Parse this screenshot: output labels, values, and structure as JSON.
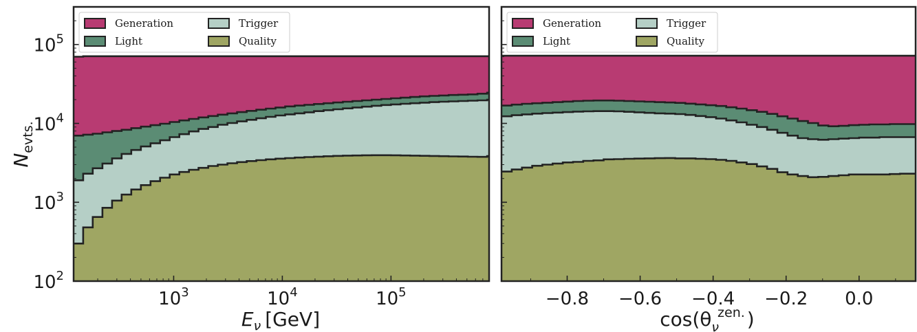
{
  "colors": {
    "generation": "#b83b72",
    "light": "#5b8c74",
    "trigger": "#b5cfc6",
    "quality": "#9fa663",
    "outline": "#222222"
  },
  "legend_labels": [
    "Generation",
    "Light",
    "Trigger",
    "Quality"
  ],
  "ylabel_main": "N",
  "ylabel_sub": "evts.",
  "chart_data": [
    {
      "type": "area",
      "stacked_overlay": true,
      "x_scale": "log",
      "y_scale": "log",
      "xlim": [
        120,
        800000
      ],
      "ylim": [
        100,
        300000
      ],
      "xlabel_main": "E",
      "xlabel_sub": "ν",
      "xlabel_unit": "[GeV]",
      "ylabel": "N_evts.",
      "legend_position": "top-left",
      "x_ticks": [
        {
          "value": 1000,
          "base": "10",
          "exp": "3"
        },
        {
          "value": 10000,
          "base": "10",
          "exp": "4"
        },
        {
          "value": 100000,
          "base": "10",
          "exp": "5"
        }
      ],
      "y_ticks": [
        {
          "value": 100,
          "base": "10",
          "exp": "2"
        },
        {
          "value": 1000,
          "base": "10",
          "exp": "3"
        },
        {
          "value": 10000,
          "base": "10",
          "exp": "4"
        },
        {
          "value": 100000,
          "base": "10",
          "exp": "5"
        }
      ],
      "x": [
        120,
        147,
        180,
        221,
        271,
        332,
        407,
        499,
        612,
        750,
        920,
        1128,
        1383,
        1695,
        2079,
        2549,
        3125,
        3831,
        4698,
        5760,
        7061,
        8658,
        10615,
        13015,
        15957,
        19564,
        23988,
        29410,
        36059,
        44211,
        54205,
        66459,
        81483,
        99904,
        122489,
        150181,
        184131,
        225757,
        276793,
        339367,
        416088,
        510154,
        625483,
        766885
      ],
      "series": [
        {
          "name": "Generation",
          "values": [
            70000,
            71000,
            71000,
            71000,
            71000,
            71000,
            71000,
            71000,
            71000,
            71000,
            71000,
            71000,
            71000,
            71000,
            71000,
            71000,
            71000,
            71000,
            71000,
            71000,
            71000,
            71000,
            71000,
            71000,
            71000,
            71000,
            71000,
            71000,
            71000,
            71000,
            71000,
            71000,
            71000,
            71000,
            71000,
            71000,
            71000,
            71000,
            71000,
            71000,
            71000,
            71000,
            71000,
            71000
          ]
        },
        {
          "name": "Light",
          "values": [
            7000,
            7200,
            7400,
            7700,
            8000,
            8300,
            8700,
            9100,
            9500,
            9900,
            10400,
            10900,
            11400,
            11900,
            12400,
            12900,
            13400,
            13900,
            14400,
            14900,
            15400,
            15900,
            16400,
            16800,
            17200,
            17600,
            18000,
            18400,
            18800,
            19200,
            19600,
            20000,
            20400,
            20800,
            21200,
            21600,
            22000,
            22300,
            22600,
            22900,
            23100,
            23300,
            23800,
            24500
          ]
        },
        {
          "name": "Trigger",
          "values": [
            1900,
            2300,
            2700,
            3100,
            3600,
            4100,
            4600,
            5100,
            5600,
            6100,
            6700,
            7300,
            7900,
            8500,
            9000,
            9600,
            10100,
            10600,
            11100,
            11600,
            12100,
            12600,
            13000,
            13400,
            13800,
            14300,
            14700,
            15100,
            15500,
            15900,
            16300,
            16700,
            17100,
            17400,
            17700,
            18000,
            18300,
            18600,
            18800,
            19000,
            19200,
            19400,
            19600,
            20000
          ]
        },
        {
          "name": "Quality",
          "values": [
            300,
            480,
            650,
            850,
            1050,
            1250,
            1450,
            1650,
            1850,
            2050,
            2250,
            2420,
            2580,
            2730,
            2880,
            3000,
            3120,
            3230,
            3330,
            3420,
            3500,
            3570,
            3630,
            3690,
            3740,
            3790,
            3830,
            3870,
            3900,
            3920,
            3940,
            3950,
            3950,
            3940,
            3920,
            3900,
            3880,
            3860,
            3840,
            3820,
            3800,
            3780,
            3760,
            3850
          ]
        }
      ]
    },
    {
      "type": "area",
      "stacked_overlay": true,
      "x_scale": "linear",
      "y_scale": "log",
      "xlim": [
        -0.98,
        0.155
      ],
      "ylim": [
        100,
        300000
      ],
      "xlabel": "cos(θ_ν^zen.)",
      "xlabel_main": "cos(θ",
      "xlabel_sub": "ν",
      "xlabel_sup": "zen.",
      "xlabel_close": ")",
      "legend_position": "top-left",
      "x_ticks": [
        {
          "value": -0.8,
          "label": "−0.8"
        },
        {
          "value": -0.6,
          "label": "−0.6"
        },
        {
          "value": -0.4,
          "label": "−0.4"
        },
        {
          "value": -0.2,
          "label": "−0.2"
        },
        {
          "value": 0.0,
          "label": "0.0"
        }
      ],
      "x": [
        -0.98,
        -0.952,
        -0.924,
        -0.896,
        -0.868,
        -0.84,
        -0.812,
        -0.784,
        -0.756,
        -0.728,
        -0.7,
        -0.672,
        -0.644,
        -0.616,
        -0.588,
        -0.56,
        -0.532,
        -0.504,
        -0.476,
        -0.448,
        -0.42,
        -0.392,
        -0.364,
        -0.336,
        -0.308,
        -0.28,
        -0.252,
        -0.224,
        -0.196,
        -0.168,
        -0.14,
        -0.112,
        -0.084,
        -0.056,
        -0.028,
        0.0,
        0.028,
        0.056,
        0.084,
        0.112,
        0.14
      ],
      "series": [
        {
          "name": "Generation",
          "values": [
            72000,
            72000,
            72000,
            72000,
            72000,
            72000,
            72000,
            72000,
            72000,
            72000,
            72000,
            72000,
            72000,
            72000,
            72000,
            72000,
            72000,
            72000,
            72000,
            72000,
            72000,
            72000,
            72000,
            72000,
            72000,
            72000,
            72000,
            72000,
            72000,
            72000,
            72000,
            72000,
            72000,
            72000,
            72000,
            72000,
            72000,
            72000,
            72000,
            72000,
            72000
          ]
        },
        {
          "name": "Light",
          "values": [
            16800,
            17300,
            17700,
            18000,
            18300,
            18600,
            18900,
            19200,
            19400,
            19500,
            19500,
            19400,
            19200,
            19000,
            18800,
            18600,
            18400,
            18200,
            17800,
            17400,
            17000,
            16600,
            16000,
            15400,
            14700,
            14000,
            13200,
            12300,
            11500,
            10700,
            10100,
            9400,
            9200,
            9300,
            9500,
            9600,
            9700,
            9700,
            9800,
            9800,
            9800
          ]
        },
        {
          "name": "Trigger",
          "values": [
            12300,
            12700,
            13000,
            13300,
            13500,
            13700,
            13900,
            14100,
            14200,
            14300,
            14300,
            14200,
            14000,
            13800,
            13600,
            13400,
            13300,
            13100,
            12800,
            12400,
            12000,
            11500,
            10900,
            10300,
            9600,
            9000,
            8300,
            7600,
            7000,
            6500,
            6300,
            6200,
            6300,
            6400,
            6500,
            6600,
            6600,
            6700,
            6700,
            6700,
            6700
          ]
        },
        {
          "name": "Quality",
          "values": [
            2450,
            2600,
            2750,
            2900,
            3000,
            3100,
            3200,
            3250,
            3350,
            3400,
            3500,
            3520,
            3560,
            3580,
            3600,
            3620,
            3640,
            3600,
            3600,
            3560,
            3520,
            3450,
            3350,
            3200,
            3050,
            2850,
            2650,
            2400,
            2250,
            2150,
            2080,
            2100,
            2150,
            2200,
            2250,
            2250,
            2250,
            2250,
            2280,
            2300,
            2300
          ]
        }
      ]
    }
  ]
}
